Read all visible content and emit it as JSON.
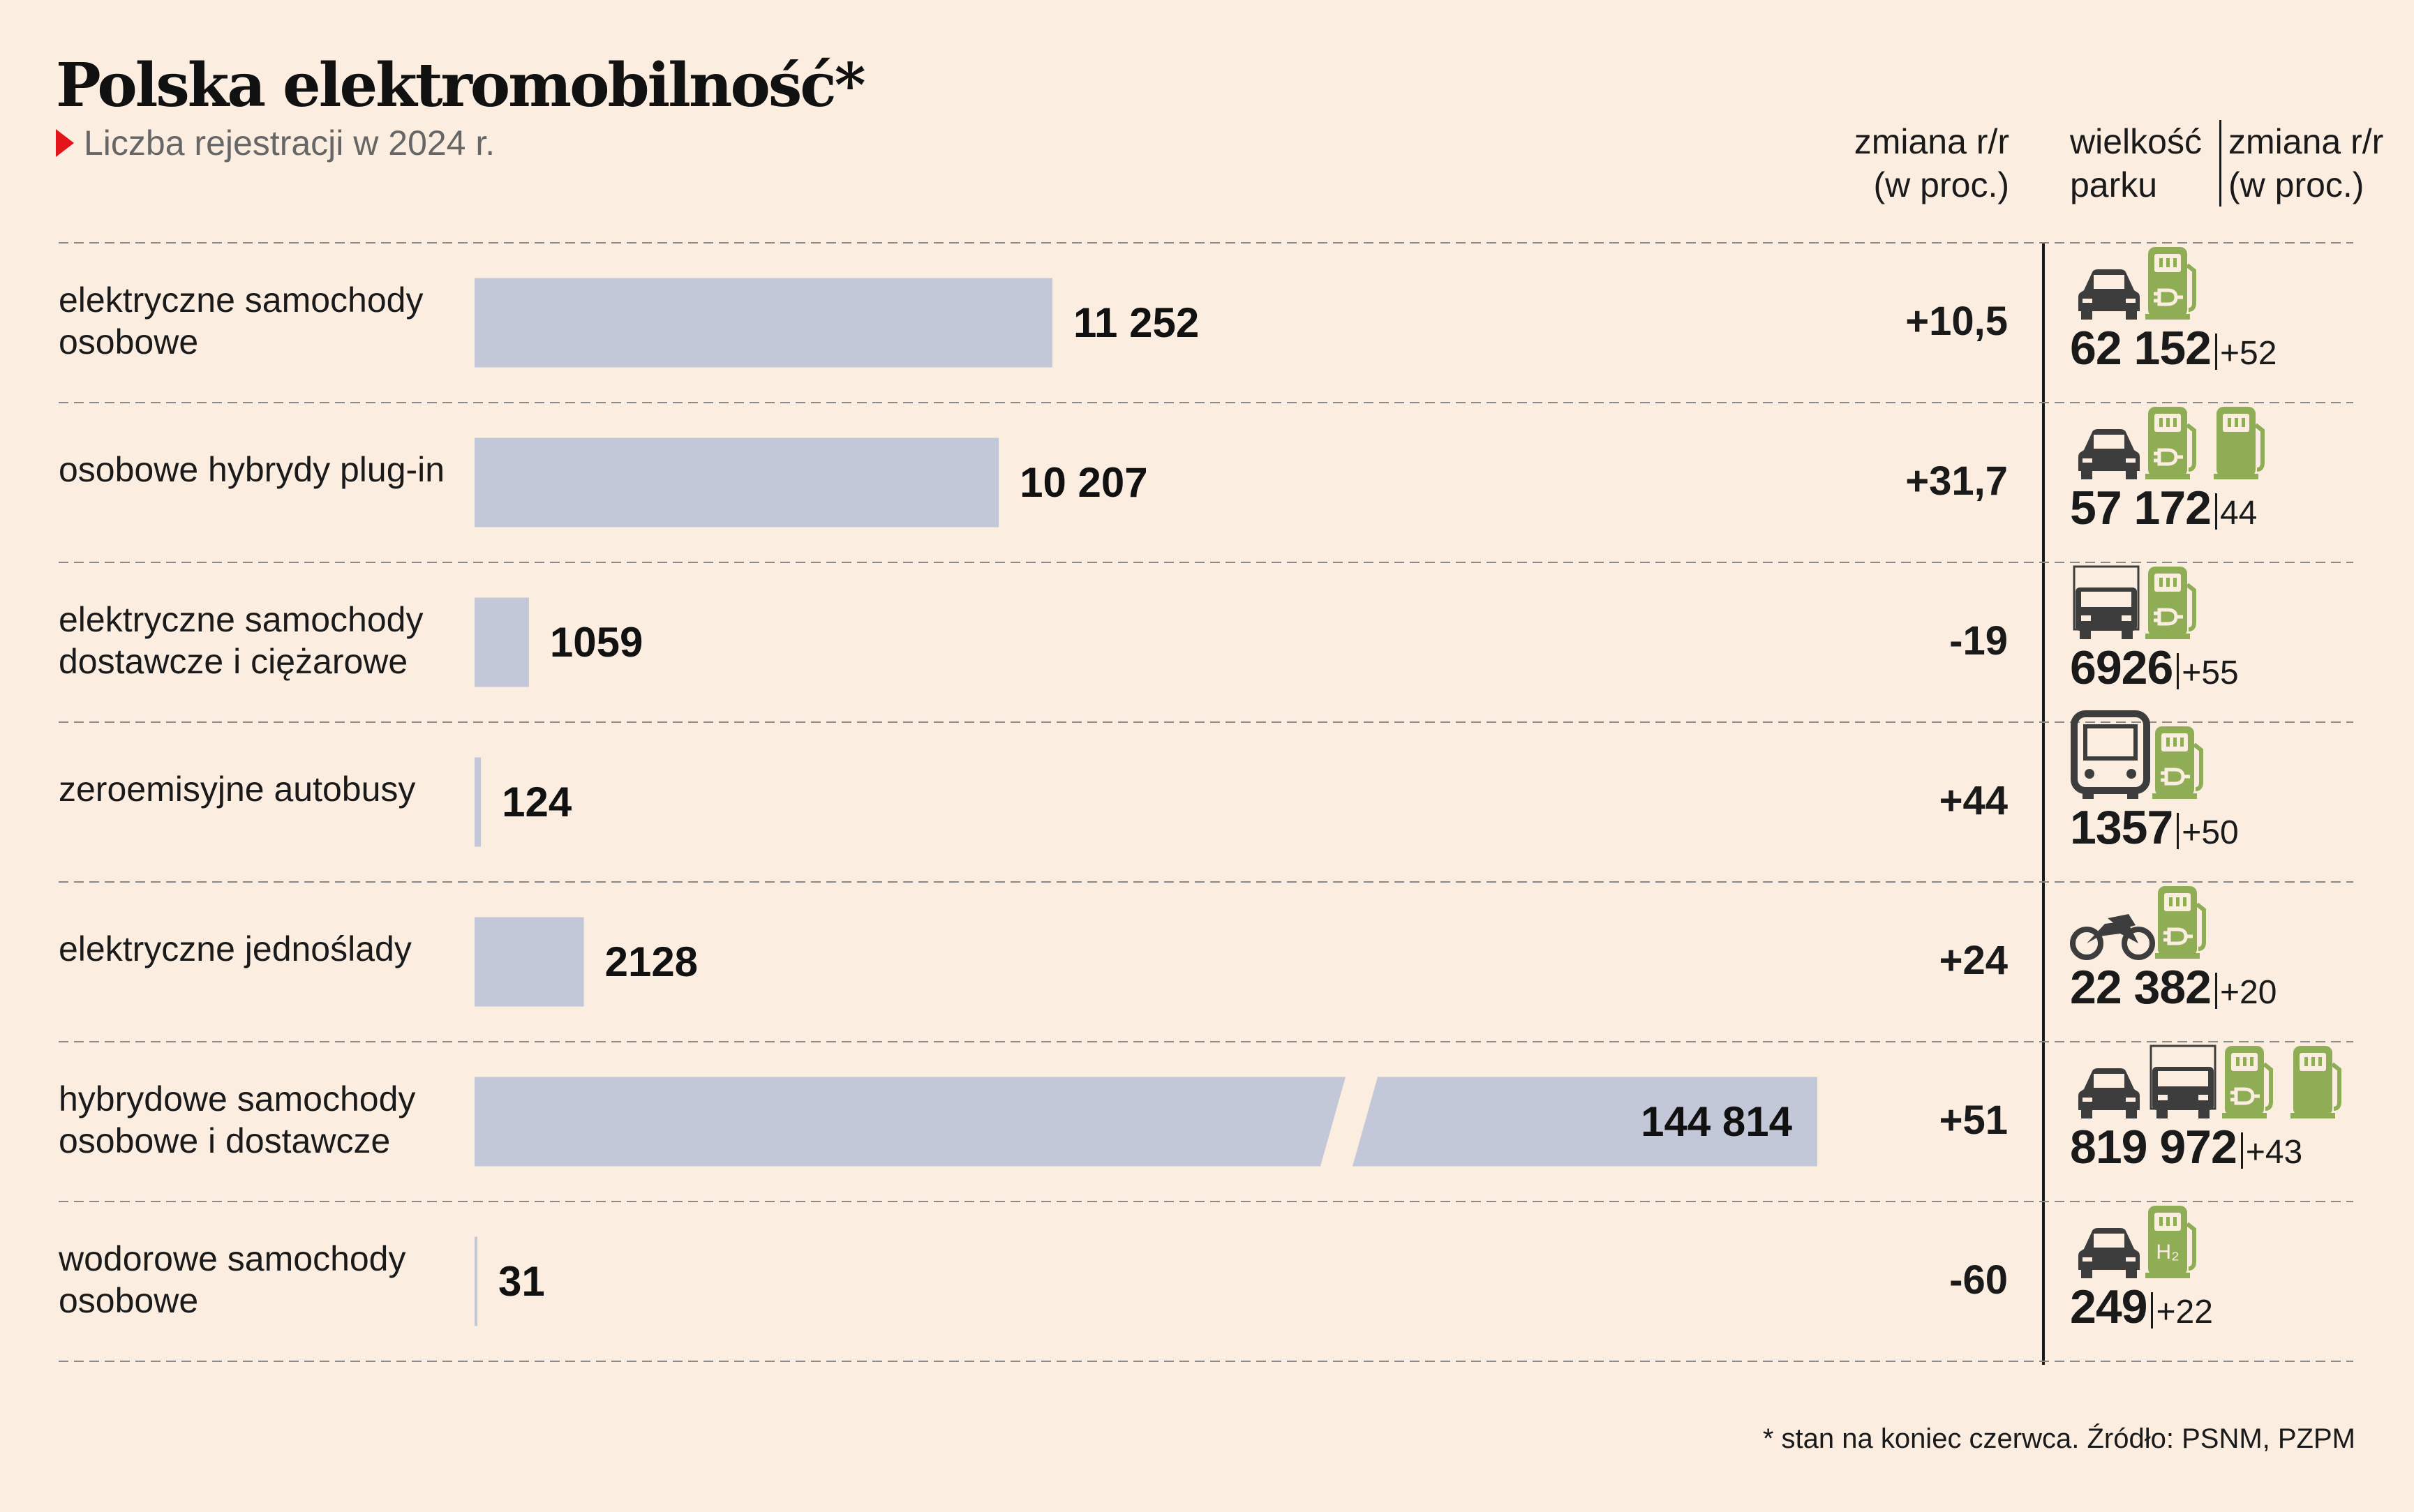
{
  "title": "Polska elektromobilność*",
  "subtitle": "Liczba rejestracji w 2024 r.",
  "header": {
    "change_line1": "zmiana r/r",
    "change_line2": "(w proc.)",
    "fleet_line1": "wielkość",
    "fleet_line2": "parku",
    "fleet_change_line1": "zmiana r/r",
    "fleet_change_line2": "(w proc.)"
  },
  "footnote": "* stan na koniec czerwca. Źródło: PSNM, PZPM",
  "colors": {
    "background": "#fbeee1",
    "bar": "#c3c8d8",
    "vehicle_icon": "#3d3d3d",
    "charger_icon": "#8fad55",
    "marker": "#e3151a"
  },
  "chart_data": {
    "type": "bar",
    "orientation": "horizontal",
    "axis_break": true,
    "categories": [
      [
        "elektryczne samochody",
        "osobowe"
      ],
      [
        "osobowe hybrydy plug-in"
      ],
      [
        "elektryczne samochody",
        "dostawcze i ciężarowe"
      ],
      [
        "zeroemisyjne autobusy"
      ],
      [
        "elektryczne jednoślady"
      ],
      [
        "hybrydowe samochody",
        "osobowe i dostawcze"
      ],
      [
        "wodorowe samochody",
        "osobowe"
      ]
    ],
    "values": [
      11252,
      10207,
      1059,
      124,
      2128,
      144814,
      31
    ],
    "value_labels": [
      "11 252",
      "10 207",
      "1059",
      "124",
      "2128",
      "144 814",
      "31"
    ],
    "change_yoy": [
      "+10,5",
      "+31,7",
      "-19",
      "+44",
      "+24",
      "+51",
      "-60"
    ],
    "fleet_size": [
      "62 152",
      "57 172",
      "6926",
      "1357",
      "22 382",
      "819 972",
      "249"
    ],
    "fleet_change_yoy": [
      "+52",
      "44",
      "+55",
      "+50",
      "+20",
      "+43",
      "+22"
    ],
    "icons": [
      [
        "car-icon",
        "ev-charger-icon"
      ],
      [
        "car-icon",
        "ev-charger-icon",
        "fuel-pump-icon"
      ],
      [
        "truck-icon",
        "ev-charger-icon"
      ],
      [
        "bus-icon",
        "ev-charger-icon"
      ],
      [
        "motorcycle-icon",
        "ev-charger-icon"
      ],
      [
        "car-icon",
        "truck-icon",
        "ev-charger-icon",
        "fuel-pump-icon"
      ],
      [
        "car-icon",
        "hydrogen-station-icon"
      ]
    ]
  }
}
